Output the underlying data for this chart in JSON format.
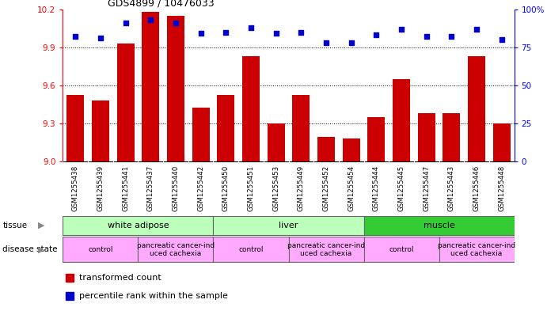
{
  "title": "GDS4899 / 10476033",
  "samples": [
    "GSM1255438",
    "GSM1255439",
    "GSM1255441",
    "GSM1255437",
    "GSM1255440",
    "GSM1255442",
    "GSM1255450",
    "GSM1255451",
    "GSM1255453",
    "GSM1255449",
    "GSM1255452",
    "GSM1255454",
    "GSM1255444",
    "GSM1255445",
    "GSM1255447",
    "GSM1255443",
    "GSM1255446",
    "GSM1255448"
  ],
  "transformed_count": [
    9.52,
    9.48,
    9.93,
    10.18,
    10.15,
    9.42,
    9.52,
    9.83,
    9.3,
    9.52,
    9.19,
    9.18,
    9.35,
    9.65,
    9.38,
    9.38,
    9.83,
    9.3
  ],
  "percentile_rank": [
    82,
    81,
    91,
    93,
    91,
    84,
    85,
    88,
    84,
    85,
    78,
    78,
    83,
    87,
    82,
    82,
    87,
    80
  ],
  "bar_color": "#cc0000",
  "dot_color": "#0000cc",
  "ylim_left": [
    9.0,
    10.2
  ],
  "ylim_right": [
    0,
    100
  ],
  "yticks_left": [
    9.0,
    9.3,
    9.6,
    9.9,
    10.2
  ],
  "yticks_right": [
    0,
    25,
    50,
    75,
    100
  ],
  "ytick_labels_right": [
    "0",
    "25",
    "50",
    "75",
    "100%"
  ],
  "grid_values": [
    9.3,
    9.6,
    9.9
  ],
  "xtick_bg_color": "#cccccc",
  "tissue_groups": [
    {
      "label": "white adipose",
      "start": 0,
      "end": 6,
      "color": "#bbffbb"
    },
    {
      "label": "liver",
      "start": 6,
      "end": 12,
      "color": "#bbffbb"
    },
    {
      "label": "muscle",
      "start": 12,
      "end": 18,
      "color": "#33cc33"
    }
  ],
  "disease_groups": [
    {
      "label": "control",
      "start": 0,
      "end": 3,
      "color": "#ffaaff"
    },
    {
      "label": "pancreatic cancer-ind\nuced cachexia",
      "start": 3,
      "end": 6,
      "color": "#ffaaff"
    },
    {
      "label": "control",
      "start": 6,
      "end": 9,
      "color": "#ffaaff"
    },
    {
      "label": "pancreatic cancer-ind\nuced cachexia",
      "start": 9,
      "end": 12,
      "color": "#ffaaff"
    },
    {
      "label": "control",
      "start": 12,
      "end": 15,
      "color": "#ffaaff"
    },
    {
      "label": "pancreatic cancer-ind\nuced cachexia",
      "start": 15,
      "end": 18,
      "color": "#ffaaff"
    }
  ],
  "legend_items": [
    {
      "color": "#cc0000",
      "label": "transformed count"
    },
    {
      "color": "#0000cc",
      "label": "percentile rank within the sample"
    }
  ]
}
